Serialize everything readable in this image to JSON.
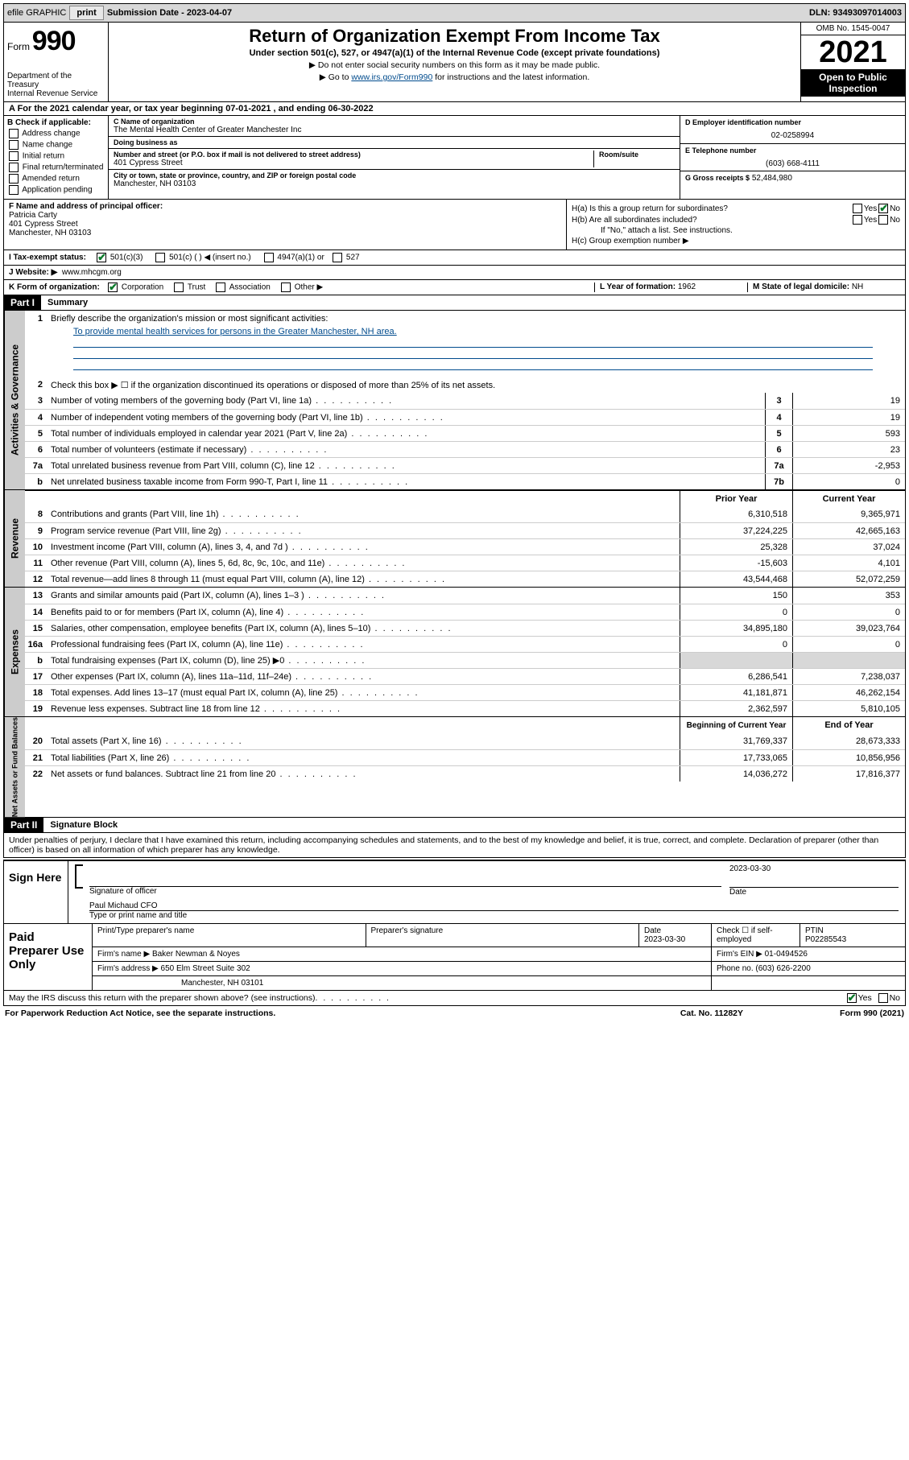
{
  "topbar": {
    "efile": "efile GRAPHIC",
    "print_btn": "print",
    "submission_label": "Submission Date - 2023-04-07",
    "dln": "DLN: 93493097014003"
  },
  "header": {
    "form_word": "Form",
    "form_num": "990",
    "dept": "Department of the Treasury",
    "irs": "Internal Revenue Service",
    "title": "Return of Organization Exempt From Income Tax",
    "subtitle": "Under section 501(c), 527, or 4947(a)(1) of the Internal Revenue Code (except private foundations)",
    "note1": "▶ Do not enter social security numbers on this form as it may be made public.",
    "note2_pre": "▶ Go to ",
    "note2_link": "www.irs.gov/Form990",
    "note2_post": " for instructions and the latest information.",
    "omb": "OMB No. 1545-0047",
    "year": "2021",
    "inspection1": "Open to Public",
    "inspection2": "Inspection"
  },
  "lineA": "A For the 2021 calendar year, or tax year beginning 07-01-2021   , and ending 06-30-2022",
  "colB": {
    "hdr": "B Check if applicable:",
    "opts": [
      "Address change",
      "Name change",
      "Initial return",
      "Final return/terminated",
      "Amended return",
      "Application pending"
    ]
  },
  "colC": {
    "name_lbl": "C Name of organization",
    "name": "The Mental Health Center of Greater Manchester Inc",
    "dba_lbl": "Doing business as",
    "street_lbl": "Number and street (or P.O. box if mail is not delivered to street address)",
    "street": "401 Cypress Street",
    "room_lbl": "Room/suite",
    "city_lbl": "City or town, state or province, country, and ZIP or foreign postal code",
    "city": "Manchester, NH  03103"
  },
  "colD": {
    "lbl": "D Employer identification number",
    "val": "02-0258994"
  },
  "colE": {
    "lbl": "E Telephone number",
    "val": "(603) 668-4111"
  },
  "colG": {
    "lbl": "G Gross receipts $",
    "val": "52,484,980"
  },
  "colF": {
    "lbl": "F Name and address of principal officer:",
    "name": "Patricia Carty",
    "addr1": "401 Cypress Street",
    "addr2": "Manchester, NH  03103"
  },
  "colH": {
    "a": "H(a)  Is this a group return for subordinates?",
    "b": "H(b)  Are all subordinates included?",
    "bnote": "If \"No,\" attach a list. See instructions.",
    "c": "H(c)  Group exemption number ▶",
    "yes": "Yes",
    "no": "No"
  },
  "rowI": {
    "lbl": "I    Tax-exempt status:",
    "opt1": "501(c)(3)",
    "opt2": "501(c) (   ) ◀ (insert no.)",
    "opt3": "4947(a)(1) or",
    "opt4": "527"
  },
  "rowJ": {
    "lbl": "J   Website: ▶",
    "val": "www.mhcgm.org"
  },
  "rowK": {
    "lbl": "K Form of organization:",
    "opts": [
      "Corporation",
      "Trust",
      "Association",
      "Other ▶"
    ],
    "L_lbl": "L Year of formation:",
    "L_val": "1962",
    "M_lbl": "M State of legal domicile:",
    "M_val": "NH"
  },
  "part1": {
    "hdr": "Part I",
    "title": "Summary",
    "q1": "Briefly describe the organization's mission or most significant activities:",
    "mission": "To provide mental health services for persons in the Greater Manchester, NH area.",
    "q2": "Check this box ▶ ☐  if the organization discontinued its operations or disposed of more than 25% of its net assets.",
    "tabs": {
      "gov": "Activities & Governance",
      "rev": "Revenue",
      "exp": "Expenses",
      "net": "Net Assets or Fund Balances"
    },
    "gov_lines": [
      {
        "n": "3",
        "d": "Number of voting members of the governing body (Part VI, line 1a)",
        "box": "3",
        "v": "19"
      },
      {
        "n": "4",
        "d": "Number of independent voting members of the governing body (Part VI, line 1b)",
        "box": "4",
        "v": "19"
      },
      {
        "n": "5",
        "d": "Total number of individuals employed in calendar year 2021 (Part V, line 2a)",
        "box": "5",
        "v": "593"
      },
      {
        "n": "6",
        "d": "Total number of volunteers (estimate if necessary)",
        "box": "6",
        "v": "23"
      },
      {
        "n": "7a",
        "d": "Total unrelated business revenue from Part VIII, column (C), line 12",
        "box": "7a",
        "v": "-2,953"
      },
      {
        "n": "b",
        "d": "Net unrelated business taxable income from Form 990-T, Part I, line 11",
        "box": "7b",
        "v": "0"
      }
    ],
    "col_prior": "Prior Year",
    "col_current": "Current Year",
    "rev_lines": [
      {
        "n": "8",
        "d": "Contributions and grants (Part VIII, line 1h)",
        "p": "6,310,518",
        "c": "9,365,971"
      },
      {
        "n": "9",
        "d": "Program service revenue (Part VIII, line 2g)",
        "p": "37,224,225",
        "c": "42,665,163"
      },
      {
        "n": "10",
        "d": "Investment income (Part VIII, column (A), lines 3, 4, and 7d )",
        "p": "25,328",
        "c": "37,024"
      },
      {
        "n": "11",
        "d": "Other revenue (Part VIII, column (A), lines 5, 6d, 8c, 9c, 10c, and 11e)",
        "p": "-15,603",
        "c": "4,101"
      },
      {
        "n": "12",
        "d": "Total revenue—add lines 8 through 11 (must equal Part VIII, column (A), line 12)",
        "p": "43,544,468",
        "c": "52,072,259"
      }
    ],
    "exp_lines": [
      {
        "n": "13",
        "d": "Grants and similar amounts paid (Part IX, column (A), lines 1–3 )",
        "p": "150",
        "c": "353"
      },
      {
        "n": "14",
        "d": "Benefits paid to or for members (Part IX, column (A), line 4)",
        "p": "0",
        "c": "0"
      },
      {
        "n": "15",
        "d": "Salaries, other compensation, employee benefits (Part IX, column (A), lines 5–10)",
        "p": "34,895,180",
        "c": "39,023,764"
      },
      {
        "n": "16a",
        "d": "Professional fundraising fees (Part IX, column (A), line 11e)",
        "p": "0",
        "c": "0"
      },
      {
        "n": "b",
        "d": "Total fundraising expenses (Part IX, column (D), line 25) ▶0",
        "p": "",
        "c": "",
        "grey": true
      },
      {
        "n": "17",
        "d": "Other expenses (Part IX, column (A), lines 11a–11d, 11f–24e)",
        "p": "6,286,541",
        "c": "7,238,037"
      },
      {
        "n": "18",
        "d": "Total expenses. Add lines 13–17 (must equal Part IX, column (A), line 25)",
        "p": "41,181,871",
        "c": "46,262,154"
      },
      {
        "n": "19",
        "d": "Revenue less expenses. Subtract line 18 from line 12",
        "p": "2,362,597",
        "c": "5,810,105"
      }
    ],
    "col_begin": "Beginning of Current Year",
    "col_end": "End of Year",
    "net_lines": [
      {
        "n": "20",
        "d": "Total assets (Part X, line 16)",
        "p": "31,769,337",
        "c": "28,673,333"
      },
      {
        "n": "21",
        "d": "Total liabilities (Part X, line 26)",
        "p": "17,733,065",
        "c": "10,856,956"
      },
      {
        "n": "22",
        "d": "Net assets or fund balances. Subtract line 21 from line 20",
        "p": "14,036,272",
        "c": "17,816,377"
      }
    ]
  },
  "part2": {
    "hdr": "Part II",
    "title": "Signature Block",
    "decl": "Under penalties of perjury, I declare that I have examined this return, including accompanying schedules and statements, and to the best of my knowledge and belief, it is true, correct, and complete. Declaration of preparer (other than officer) is based on all information of which preparer has any knowledge.",
    "sign_here": "Sign Here",
    "sig_officer": "Signature of officer",
    "sig_date": "Date",
    "sig_date_val": "2023-03-30",
    "officer_name": "Paul Michaud CFO",
    "type_name": "Type or print name and title",
    "paid": "Paid Preparer Use Only",
    "prep_name_lbl": "Print/Type preparer's name",
    "prep_sig_lbl": "Preparer's signature",
    "prep_date_lbl": "Date",
    "prep_date_val": "2023-03-30",
    "self_emp": "Check ☐ if self-employed",
    "ptin_lbl": "PTIN",
    "ptin": "P02285543",
    "firm_name_lbl": "Firm's name    ▶",
    "firm_name": "Baker Newman & Noyes",
    "firm_ein_lbl": "Firm's EIN ▶",
    "firm_ein": "01-0494526",
    "firm_addr_lbl": "Firm's address ▶",
    "firm_addr1": "650 Elm Street Suite 302",
    "firm_addr2": "Manchester, NH  03101",
    "firm_phone_lbl": "Phone no.",
    "firm_phone": "(603) 626-2200",
    "discuss": "May the IRS discuss this return with the preparer shown above? (see instructions)",
    "yes": "Yes",
    "no": "No"
  },
  "footer": {
    "pra": "For Paperwork Reduction Act Notice, see the separate instructions.",
    "cat": "Cat. No. 11282Y",
    "form": "Form 990 (2021)"
  }
}
